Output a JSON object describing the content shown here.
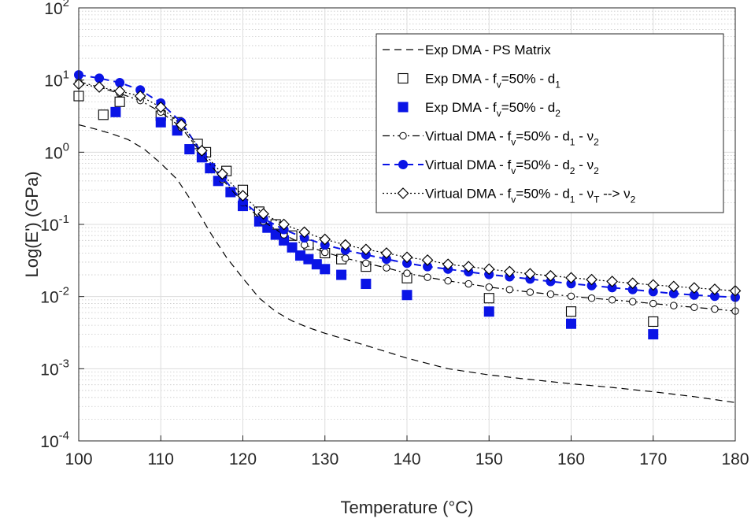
{
  "chart_data": {
    "type": "line",
    "y_scale": "log",
    "xlabel": "Temperature (°C)",
    "ylabel": "Log(E') (GPa)",
    "xlim": [
      100,
      180
    ],
    "ylim": [
      0.0001,
      100
    ],
    "x_ticks": [
      "100",
      "110",
      "120",
      "130",
      "140",
      "150",
      "160",
      "170",
      "180"
    ],
    "y_tick_mantissa": "10",
    "y_tick_exponents": [
      "-4",
      "-3",
      "-2",
      "-1",
      "0",
      "1",
      "2"
    ],
    "grid": true,
    "minor_grid": true,
    "legend_position": "top-right",
    "legend": [
      {
        "parts": [
          [
            "Exp DMA - PS Matrix",
            ""
          ]
        ]
      },
      {
        "parts": [
          [
            "Exp DMA - f",
            ""
          ],
          [
            "v",
            "sub"
          ],
          [
            "=50% - d",
            ""
          ],
          [
            "1",
            "sub"
          ]
        ]
      },
      {
        "parts": [
          [
            "Exp DMA - f",
            ""
          ],
          [
            "v",
            "sub"
          ],
          [
            "=50% - d",
            ""
          ],
          [
            "2",
            "sub"
          ]
        ]
      },
      {
        "parts": [
          [
            "Virtual DMA - f",
            ""
          ],
          [
            "v",
            "sub"
          ],
          [
            "=50% - d",
            ""
          ],
          [
            "1",
            "sub"
          ],
          [
            " - ν",
            ""
          ],
          [
            "2",
            "sub"
          ]
        ]
      },
      {
        "parts": [
          [
            "Virtual DMA - f",
            ""
          ],
          [
            "v",
            "sub"
          ],
          [
            "=50% - d",
            ""
          ],
          [
            "2",
            "sub"
          ],
          [
            " - ν",
            ""
          ],
          [
            "2",
            "sub"
          ]
        ]
      },
      {
        "parts": [
          [
            "Virtual DMA - f",
            ""
          ],
          [
            "v",
            "sub"
          ],
          [
            "=50% - d",
            ""
          ],
          [
            "1",
            "sub"
          ],
          [
            " - ν",
            ""
          ],
          [
            "T",
            "sub"
          ],
          [
            " --> ν",
            ""
          ],
          [
            "2",
            "sub"
          ]
        ]
      }
    ],
    "series": [
      {
        "style": "dashed",
        "color": "#000000",
        "marker": "none",
        "x": [
          100,
          102,
          104,
          106,
          108,
          110,
          112,
          114,
          116,
          118,
          120,
          122,
          124,
          126,
          128,
          130,
          135,
          140,
          145,
          150,
          155,
          160,
          165,
          170,
          175,
          180
        ],
        "y": [
          2.4,
          2.1,
          1.8,
          1.5,
          1.1,
          0.7,
          0.42,
          0.19,
          0.078,
          0.035,
          0.018,
          0.0095,
          0.0062,
          0.0046,
          0.0037,
          0.0031,
          0.0021,
          0.0014,
          0.001,
          0.00082,
          0.00071,
          0.00062,
          0.00055,
          0.00048,
          0.00041,
          0.00034
        ]
      },
      {
        "style": "none",
        "color": "#000000",
        "marker": "square-open",
        "x": [
          100,
          103,
          105,
          110,
          112,
          114.5,
          115.5,
          118,
          120,
          122,
          124,
          126,
          128,
          130,
          132,
          135,
          140,
          150,
          160,
          170
        ],
        "y": [
          6,
          3.3,
          5,
          3.2,
          2.6,
          1.3,
          1.0,
          0.55,
          0.3,
          0.15,
          0.1,
          0.07,
          0.052,
          0.04,
          0.033,
          0.026,
          0.018,
          0.0095,
          0.0062,
          0.0045
        ]
      },
      {
        "style": "none",
        "color": "#0a14e6",
        "marker": "square-filled",
        "x": [
          104.5,
          110,
          112,
          113.5,
          115,
          116,
          117,
          118.5,
          120,
          122,
          123,
          124,
          125,
          126,
          127,
          128,
          129,
          130,
          132,
          135,
          140,
          150,
          160,
          170
        ],
        "y": [
          3.6,
          2.6,
          2.0,
          1.1,
          0.85,
          0.6,
          0.4,
          0.28,
          0.18,
          0.11,
          0.09,
          0.072,
          0.06,
          0.048,
          0.037,
          0.033,
          0.028,
          0.024,
          0.02,
          0.015,
          0.0105,
          0.0062,
          0.0042,
          0.003
        ]
      },
      {
        "style": "dashdot",
        "color": "#000000",
        "marker": "circle-open",
        "x": [
          100,
          102.5,
          105,
          107.5,
          110,
          112.5,
          115,
          117.5,
          120,
          122.5,
          125,
          127.5,
          130,
          132.5,
          135,
          137.5,
          140,
          142.5,
          145,
          147.5,
          150,
          152.5,
          155,
          157.5,
          160,
          162.5,
          165,
          167.5,
          170,
          172.5,
          175,
          177.5,
          180
        ],
        "y": [
          9.5,
          8,
          6.5,
          5.2,
          3.6,
          2.2,
          0.95,
          0.42,
          0.2,
          0.11,
          0.072,
          0.052,
          0.041,
          0.034,
          0.029,
          0.025,
          0.021,
          0.0185,
          0.0165,
          0.015,
          0.0135,
          0.0125,
          0.0115,
          0.0108,
          0.0101,
          0.0095,
          0.009,
          0.0085,
          0.008,
          0.0075,
          0.0071,
          0.0067,
          0.0063
        ]
      },
      {
        "style": "dashed",
        "color": "#0a14e6",
        "marker": "circle-filled",
        "x": [
          100,
          102.5,
          105,
          107.5,
          110,
          112.5,
          115,
          117.5,
          120,
          122.5,
          125,
          127.5,
          130,
          132.5,
          135,
          137.5,
          140,
          142.5,
          145,
          147.5,
          150,
          152.5,
          155,
          157.5,
          160,
          162.5,
          165,
          167.5,
          170,
          172.5,
          175,
          177.5,
          180
        ],
        "y": [
          11.8,
          10.6,
          9.2,
          7.3,
          4.8,
          2.6,
          0.98,
          0.45,
          0.21,
          0.12,
          0.085,
          0.065,
          0.052,
          0.044,
          0.038,
          0.033,
          0.029,
          0.026,
          0.024,
          0.022,
          0.0202,
          0.0188,
          0.0175,
          0.0162,
          0.0151,
          0.0142,
          0.0133,
          0.0125,
          0.0117,
          0.011,
          0.0105,
          0.0101,
          0.0098
        ]
      },
      {
        "style": "dotted",
        "color": "#000000",
        "marker": "diamond-open",
        "x": [
          100,
          102.5,
          105,
          107.5,
          110,
          112.5,
          115,
          117.5,
          120,
          122.5,
          125,
          127.5,
          130,
          132.5,
          135,
          137.5,
          140,
          142.5,
          145,
          147.5,
          150,
          152.5,
          155,
          157.5,
          160,
          162.5,
          165,
          167.5,
          170,
          172.5,
          175,
          177.5,
          180
        ],
        "y": [
          8.8,
          8,
          7,
          6,
          4.2,
          2.4,
          1.05,
          0.5,
          0.25,
          0.14,
          0.1,
          0.078,
          0.062,
          0.052,
          0.045,
          0.04,
          0.035,
          0.032,
          0.028,
          0.026,
          0.024,
          0.0222,
          0.0207,
          0.0194,
          0.0182,
          0.0172,
          0.0162,
          0.0153,
          0.0145,
          0.0138,
          0.0132,
          0.0126,
          0.012
        ]
      }
    ]
  }
}
